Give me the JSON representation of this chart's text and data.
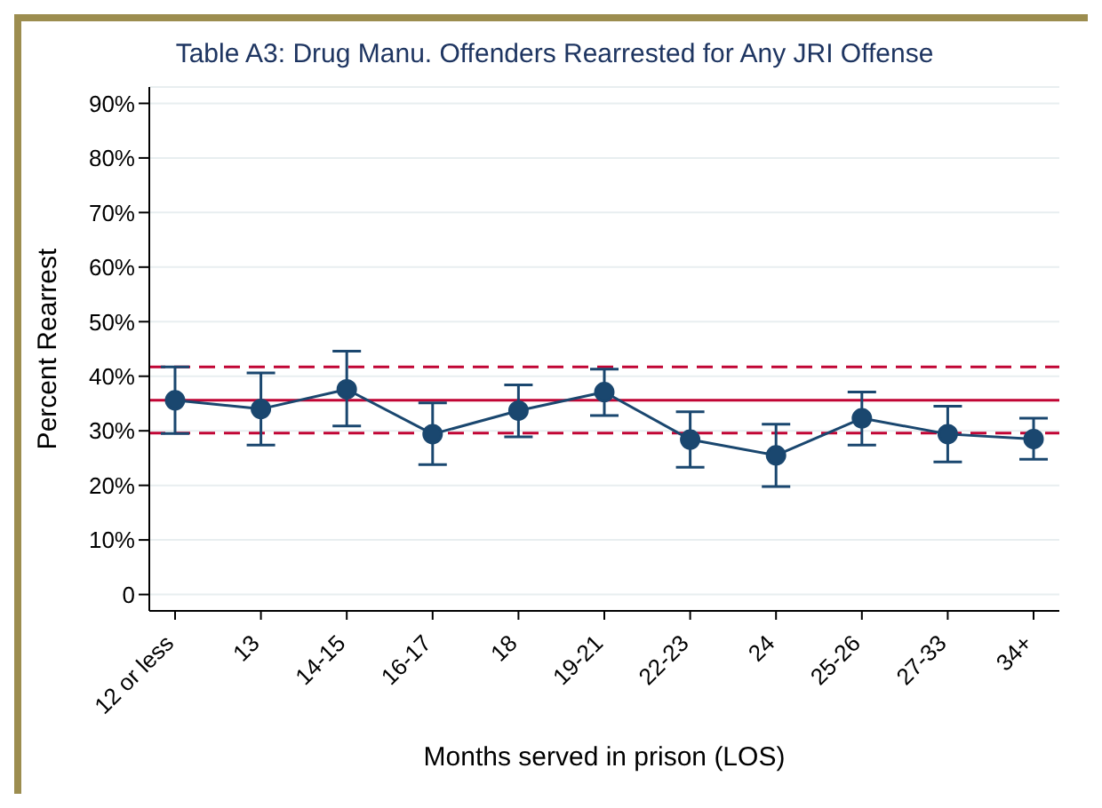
{
  "chart_data": {
    "type": "line",
    "title": "Table A3: Drug Manu. Offenders Rearrested for Any JRI Offense",
    "xlabel": "Months served in prison (LOS)",
    "ylabel": "Percent Rearrest",
    "categories": [
      "12 or less",
      "13",
      "14-15",
      "16-17",
      "18",
      "19-21",
      "22-23",
      "24",
      "25-26",
      "27-33",
      "34+"
    ],
    "series": [
      {
        "color": "#1a476f",
        "values": [
          35.6,
          34.0,
          37.6,
          29.4,
          33.7,
          37.1,
          28.4,
          25.5,
          32.3,
          29.4,
          28.5
        ],
        "errors": [
          [
            29.5,
            41.7
          ],
          [
            27.4,
            40.6
          ],
          [
            30.9,
            44.6
          ],
          [
            23.8,
            35.1
          ],
          [
            28.9,
            38.4
          ],
          [
            32.8,
            41.3
          ],
          [
            23.3,
            33.5
          ],
          [
            19.8,
            31.2
          ],
          [
            27.4,
            37.1
          ],
          [
            24.3,
            34.5
          ],
          [
            24.8,
            32.3
          ]
        ]
      }
    ],
    "ylim": [
      -3,
      93
    ],
    "yticks": [
      0,
      {
        "value": 10,
        "label": "10%"
      },
      {
        "value": 20,
        "label": "20%"
      },
      {
        "value": 30,
        "label": "30%"
      },
      {
        "value": 40,
        "label": "40%"
      },
      {
        "value": 50,
        "label": "50%"
      },
      {
        "value": 60,
        "label": "60%"
      },
      {
        "value": 70,
        "label": "70%"
      },
      {
        "value": 80,
        "label": "80%"
      },
      {
        "value": 90,
        "label": "90%"
      }
    ],
    "grid": "y",
    "marker": "circle",
    "line_style": "solid",
    "ref_lines": [
      {
        "axis": "y",
        "value": 35.6,
        "color": "#c10534",
        "line_style": "solid"
      },
      {
        "axis": "y",
        "value": 41.7,
        "color": "#c10534",
        "line_style": "dashed"
      },
      {
        "axis": "y",
        "value": 29.6,
        "color": "#c10534",
        "line_style": "dashed"
      }
    ]
  }
}
